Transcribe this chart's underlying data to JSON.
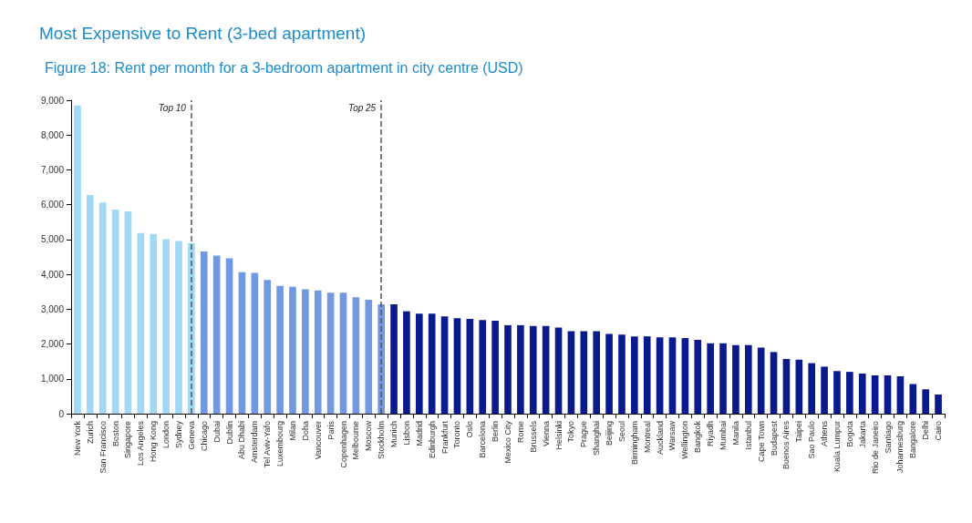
{
  "chart_data": {
    "type": "bar",
    "title": "Most Expensive to Rent (3-bed apartment)",
    "subtitle": "Figure 18: Rent per month for a 3-bedroom apartment in city centre (USD)",
    "categories": [
      "New York",
      "Zurich",
      "San Francisco",
      "Boston",
      "Singapore",
      "Los Angeles",
      "Hong Kong",
      "London",
      "Sydney",
      "Geneva",
      "Chicago",
      "Dubai",
      "Dublin",
      "Abu Dhabi",
      "Amsterdam",
      "Tel Aviv-Yafo",
      "Luxembourg",
      "Milan",
      "Doha",
      "Vancouver",
      "Paris",
      "Copenhagen",
      "Melbourne",
      "Moscow",
      "Stockholm",
      "Munich",
      "Lisbon",
      "Madrid",
      "Edinburgh",
      "Frankfurt",
      "Toronto",
      "Oslo",
      "Barcelona",
      "Berlin",
      "Mexico City",
      "Rome",
      "Brussels",
      "Vienna",
      "Helsinki",
      "Tokyo",
      "Prague",
      "Shanghai",
      "Beijing",
      "Seoul",
      "Birmingham",
      "Montreal",
      "Auckland",
      "Warsaw",
      "Wellington",
      "Bangkok",
      "Riyadh",
      "Mumbai",
      "Manila",
      "Istanbul",
      "Cape Town",
      "Budapest",
      "Buenos Aires",
      "Taipei",
      "Sao Paulo",
      "Athens",
      "Kuala Lumpur",
      "Bogota",
      "Jakarta",
      "Rio de Janeiro",
      "Santiago",
      "Johannesburg",
      "Bangalore",
      "Delhi",
      "Cairo"
    ],
    "values": [
      8850,
      6280,
      6060,
      5860,
      5810,
      5190,
      5160,
      5010,
      4960,
      4890,
      4660,
      4540,
      4460,
      4060,
      4040,
      3840,
      3670,
      3640,
      3570,
      3540,
      3470,
      3470,
      3340,
      3270,
      3140,
      3140,
      2940,
      2870,
      2870,
      2790,
      2740,
      2720,
      2690,
      2670,
      2540,
      2540,
      2520,
      2520,
      2470,
      2370,
      2370,
      2370,
      2290,
      2270,
      2220,
      2220,
      2190,
      2190,
      2170,
      2120,
      2020,
      2020,
      1970,
      1970,
      1900,
      1770,
      1570,
      1550,
      1450,
      1350,
      1220,
      1200,
      1150,
      1100,
      1100,
      1070,
      850,
      700,
      550
    ],
    "colors": [
      "#9fd9f6",
      "#9fd9f6",
      "#9fd9f6",
      "#9fd9f6",
      "#9fd9f6",
      "#9fd9f6",
      "#9fd9f6",
      "#9fd9f6",
      "#9fd9f6",
      "#9fd9f6",
      "#7199e1",
      "#7199e1",
      "#7199e1",
      "#7199e1",
      "#7199e1",
      "#7199e1",
      "#7199e1",
      "#7199e1",
      "#7199e1",
      "#7199e1",
      "#7199e1",
      "#7199e1",
      "#7199e1",
      "#7199e1",
      "#7199e1",
      "#0a1a8c",
      "#0a1a8c",
      "#0a1a8c",
      "#0a1a8c",
      "#0a1a8c",
      "#0a1a8c",
      "#0a1a8c",
      "#0a1a8c",
      "#0a1a8c",
      "#0a1a8c",
      "#0a1a8c",
      "#0a1a8c",
      "#0a1a8c",
      "#0a1a8c",
      "#0a1a8c",
      "#0a1a8c",
      "#0a1a8c",
      "#0a1a8c",
      "#0a1a8c",
      "#0a1a8c",
      "#0a1a8c",
      "#0a1a8c",
      "#0a1a8c",
      "#0a1a8c",
      "#0a1a8c",
      "#0a1a8c",
      "#0a1a8c",
      "#0a1a8c",
      "#0a1a8c",
      "#0a1a8c",
      "#0a1a8c",
      "#0a1a8c",
      "#0a1a8c",
      "#0a1a8c",
      "#0a1a8c",
      "#0a1a8c",
      "#0a1a8c",
      "#0a1a8c",
      "#0a1a8c",
      "#0a1a8c",
      "#0a1a8c",
      "#0a1a8c",
      "#0a1a8c",
      "#0a1a8c"
    ],
    "ylim": [
      0,
      9000
    ],
    "yticks": [
      0,
      {
        "value": 1000,
        "label": "1,000"
      },
      {
        "value": 2000,
        "label": "2,000"
      },
      {
        "value": 3000,
        "label": "3,000"
      },
      {
        "value": 4000,
        "label": "4,000"
      },
      {
        "value": 5000,
        "label": "5,000"
      },
      {
        "value": 6000,
        "label": "6,000"
      },
      {
        "value": 7000,
        "label": "7,000"
      },
      {
        "value": 8000,
        "label": "8,000"
      },
      {
        "value": 9000,
        "label": "9,000"
      }
    ],
    "grid": false,
    "ref_lines": [
      {
        "axis": "x",
        "value": "Geneva",
        "label": "Top 10",
        "color": "#555555",
        "line_style": "dashed"
      },
      {
        "axis": "x",
        "value": "Stockholm",
        "label": "Top 25",
        "color": "#555555",
        "line_style": "dashed"
      }
    ]
  }
}
